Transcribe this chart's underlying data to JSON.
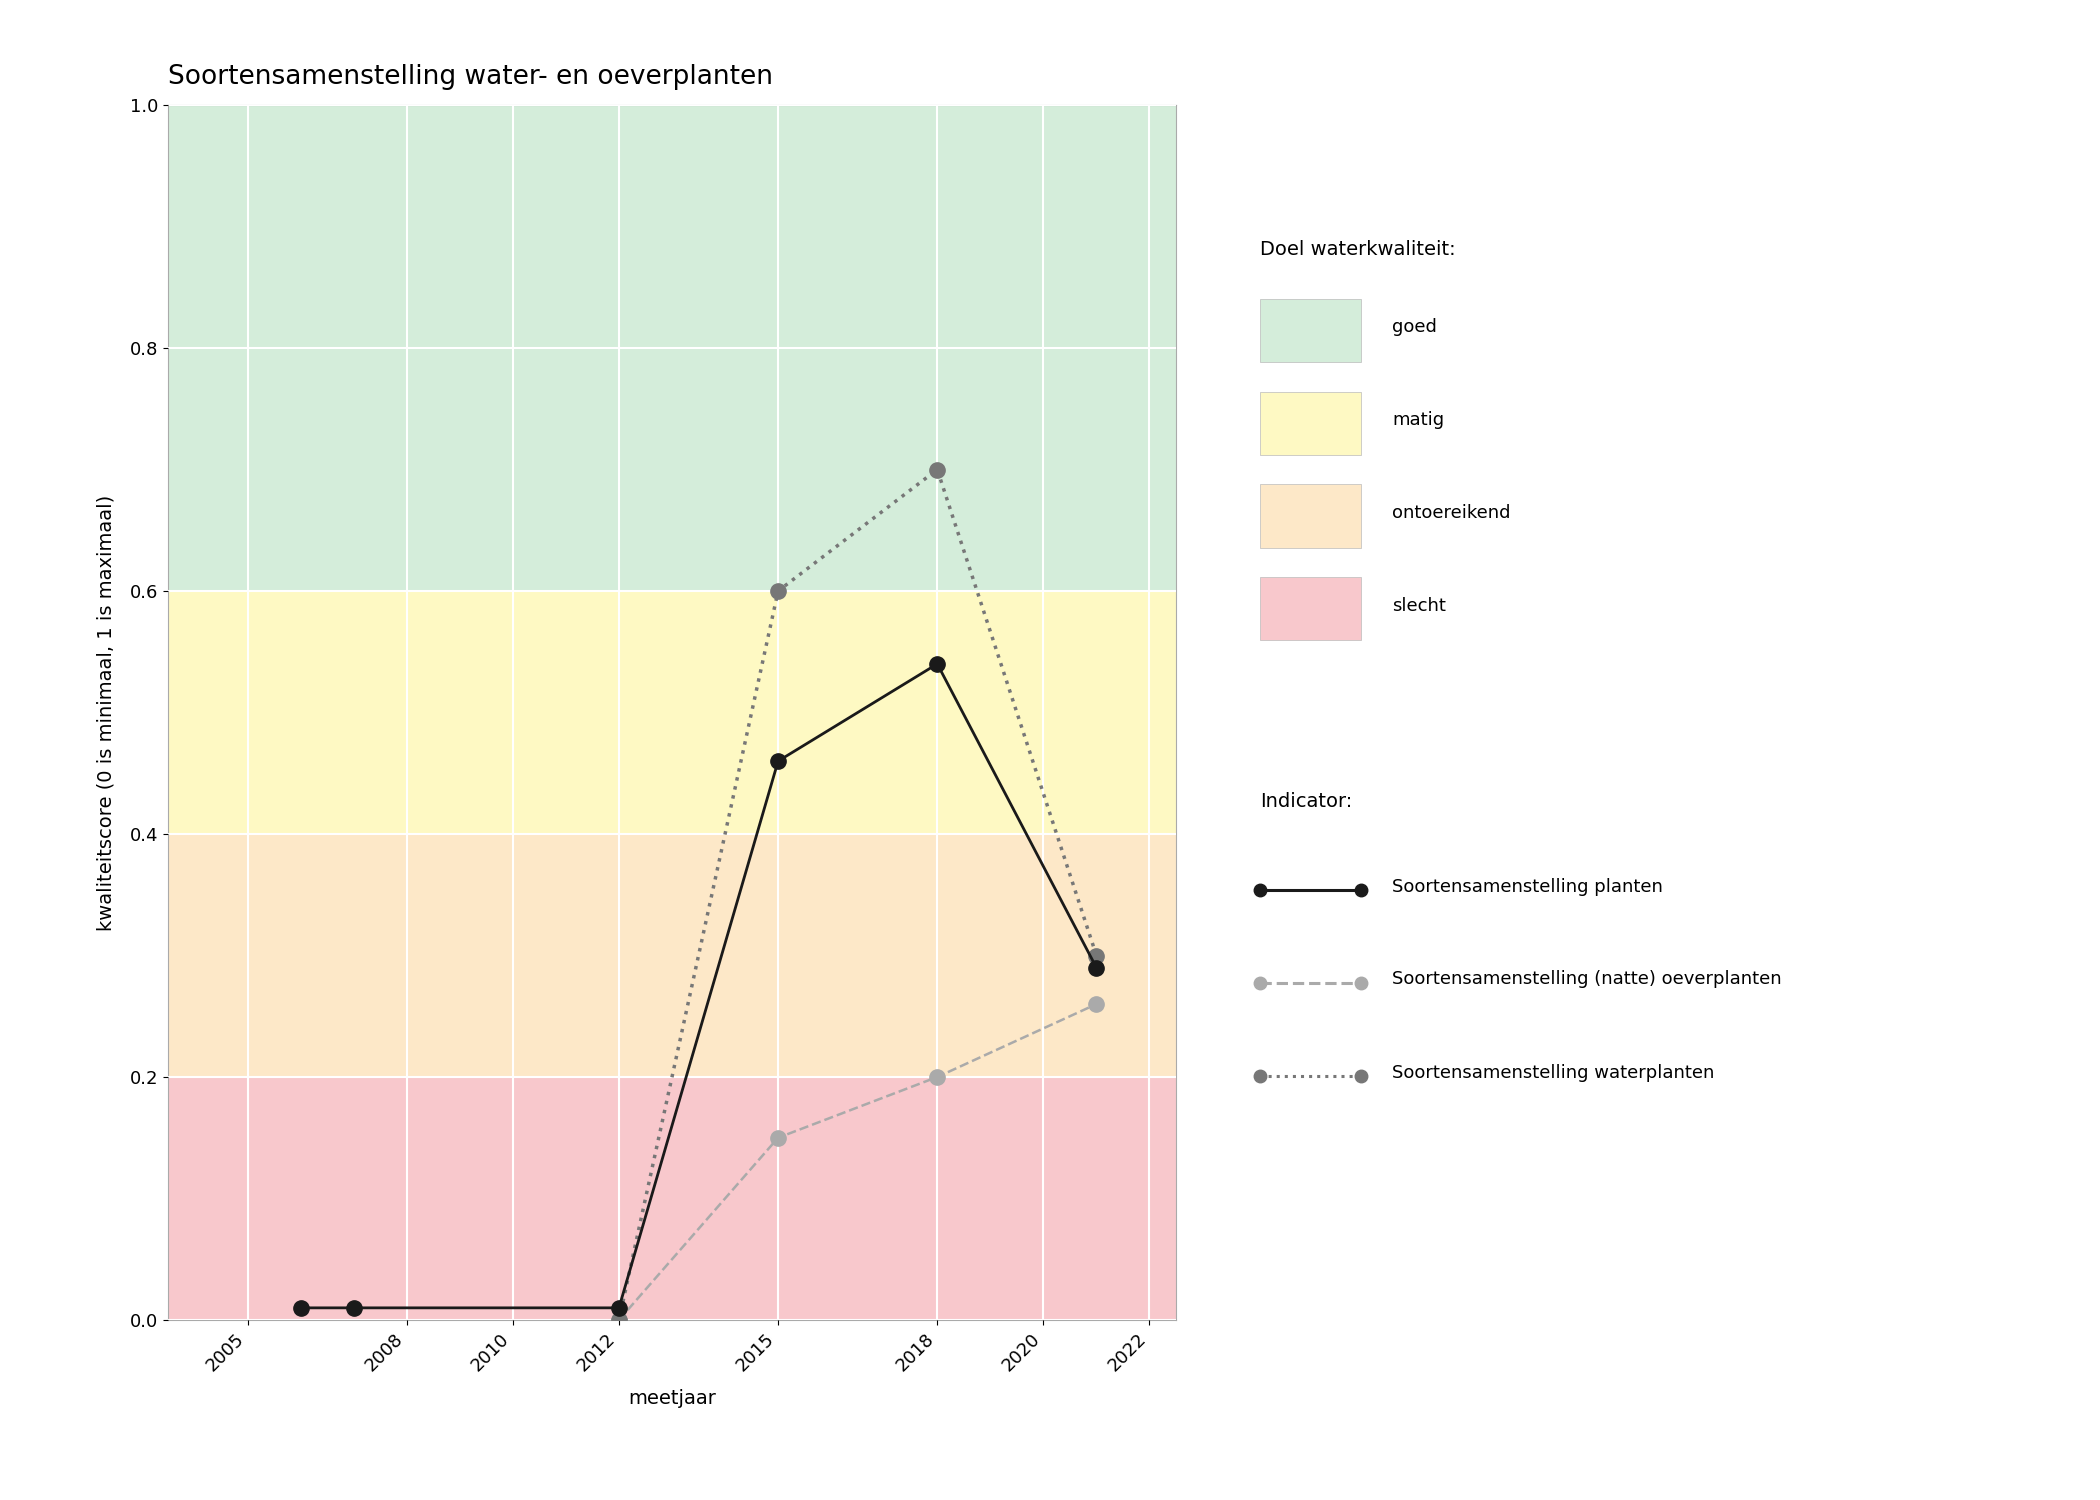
{
  "title": "Soortensamenstelling water- en oeverplanten",
  "xlabel": "meetjaar",
  "ylabel": "kwaliteitscore (0 is minimaal, 1 is maximaal)",
  "xlim": [
    2003.5,
    2022.5
  ],
  "ylim": [
    0.0,
    1.0
  ],
  "xticks": [
    2005,
    2008,
    2010,
    2012,
    2015,
    2018,
    2020,
    2022
  ],
  "yticks": [
    0.0,
    0.2,
    0.4,
    0.6,
    0.8,
    1.0
  ],
  "bg_color": "#ffffff",
  "plot_bg_color": "#ebebeb",
  "grid_color": "#ffffff",
  "bg_bands": [
    {
      "ymin": 0.6,
      "ymax": 1.0,
      "color": "#d4edda",
      "label": "goed"
    },
    {
      "ymin": 0.4,
      "ymax": 0.6,
      "color": "#fef9c3",
      "label": "matig"
    },
    {
      "ymin": 0.2,
      "ymax": 0.4,
      "color": "#fde8c8",
      "label": "ontoereikend"
    },
    {
      "ymin": 0.0,
      "ymax": 0.2,
      "color": "#f8c8cc",
      "label": "slecht"
    }
  ],
  "series": [
    {
      "name": "Soortensamenstelling planten",
      "x": [
        2006,
        2007,
        2012,
        2015,
        2018,
        2021
      ],
      "y": [
        0.01,
        0.01,
        0.01,
        0.46,
        0.54,
        0.29
      ],
      "color": "#1a1a1a",
      "linestyle": "solid",
      "linewidth": 2.0,
      "marker": "o",
      "markersize": 11,
      "markerfacecolor": "#1a1a1a",
      "markeredgecolor": "#1a1a1a",
      "zorder": 5
    },
    {
      "name": "Soortensamenstelling (natte) oeverplanten",
      "x": [
        2012,
        2015,
        2018,
        2021
      ],
      "y": [
        0.0,
        0.15,
        0.2,
        0.26
      ],
      "color": "#aaaaaa",
      "linestyle": "dashed",
      "linewidth": 1.8,
      "marker": "o",
      "markersize": 11,
      "markerfacecolor": "#aaaaaa",
      "markeredgecolor": "#aaaaaa",
      "zorder": 4
    },
    {
      "name": "Soortensamenstelling waterplanten",
      "x": [
        2012,
        2015,
        2018,
        2021
      ],
      "y": [
        0.0,
        0.6,
        0.7,
        0.3
      ],
      "color": "#777777",
      "linestyle": "dotted",
      "linewidth": 2.5,
      "marker": "o",
      "markersize": 11,
      "markerfacecolor": "#777777",
      "markeredgecolor": "#777777",
      "zorder": 4
    }
  ],
  "legend_bg_colors": [
    "#d4edda",
    "#fef9c3",
    "#fde8c8",
    "#f8c8cc"
  ],
  "legend_bg_labels": [
    "goed",
    "matig",
    "ontoereikend",
    "slecht"
  ],
  "legend_title_doel": "Doel waterkwaliteit:",
  "legend_title_indicator": "Indicator:",
  "title_fontsize": 19,
  "axis_label_fontsize": 14,
  "tick_fontsize": 13,
  "legend_fontsize": 13
}
